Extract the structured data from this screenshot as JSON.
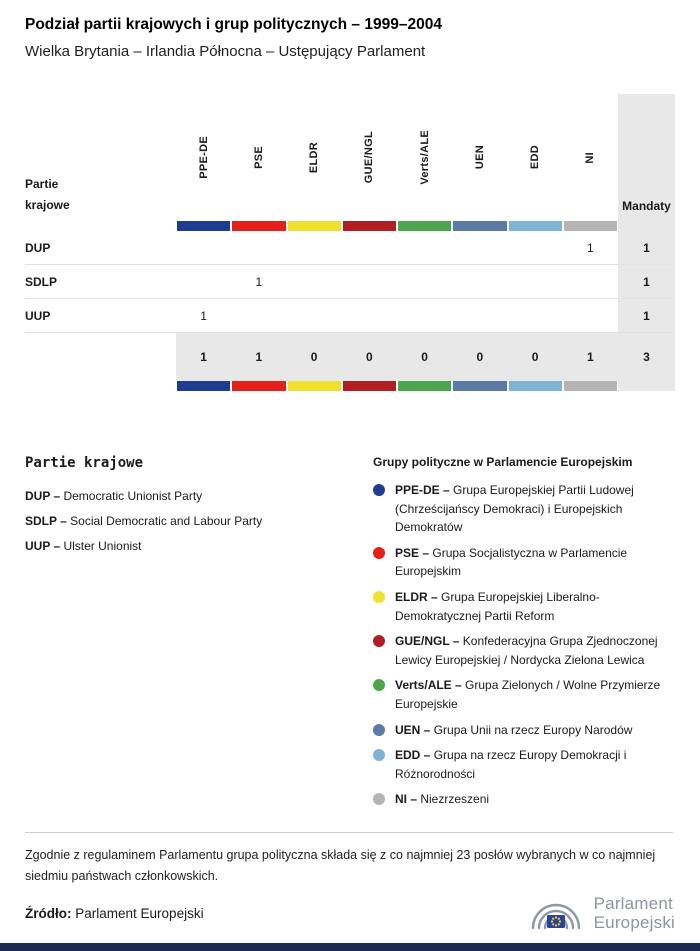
{
  "sep": "–",
  "header": {
    "title": "Podział partii krajowych i grup politycznych – 1999–2004",
    "subtitle": "Wielka Brytania – Irlandia Północna – Ustępujący Parlament"
  },
  "table": {
    "first_col_header": [
      "Partie",
      "krajowe"
    ],
    "mandaty_header": "Mandaty",
    "groups": [
      {
        "code": "PPE-DE",
        "color": "#1e3d8f"
      },
      {
        "code": "PSE",
        "color": "#e32119"
      },
      {
        "code": "ELDR",
        "color": "#f0e130"
      },
      {
        "code": "GUE/NGL",
        "color": "#b11f24"
      },
      {
        "code": "Verts/ALE",
        "color": "#4ba64f"
      },
      {
        "code": "UEN",
        "color": "#5c7aa6"
      },
      {
        "code": "EDD",
        "color": "#7fb2d5"
      },
      {
        "code": "NI",
        "color": "#b4b4b4"
      }
    ],
    "rows": [
      {
        "party": "DUP",
        "values": [
          "",
          "",
          "",
          "",
          "",
          "",
          "",
          "1"
        ],
        "mandaty": "1"
      },
      {
        "party": "SDLP",
        "values": [
          "",
          "1",
          "",
          "",
          "",
          "",
          "",
          ""
        ],
        "mandaty": "1"
      },
      {
        "party": "UUP",
        "values": [
          "1",
          "",
          "",
          "",
          "",
          "",
          "",
          ""
        ],
        "mandaty": "1"
      }
    ],
    "totals": {
      "values": [
        "1",
        "1",
        "0",
        "0",
        "0",
        "0",
        "0",
        "1"
      ],
      "mandaty": "3"
    }
  },
  "party_legend": {
    "heading": "Partie krajowe",
    "items": [
      {
        "abbr": "DUP",
        "name": "Democratic Unionist Party"
      },
      {
        "abbr": "SDLP",
        "name": "Social Democratic and Labour Party"
      },
      {
        "abbr": "UUP",
        "name": "Ulster Unionist"
      }
    ]
  },
  "group_legend": {
    "heading": "Grupy polityczne w Parlamencie Europejskim",
    "items": [
      {
        "code": "PPE-DE",
        "color": "#1e3d8f",
        "desc": "Grupa Europejskiej Partii Ludowej (Chrześcijańscy Demokraci) i Europejskich Demokratów"
      },
      {
        "code": "PSE",
        "color": "#e32119",
        "desc": "Grupa Socjalistyczna w Parlamencie Europejskim"
      },
      {
        "code": "ELDR",
        "color": "#f0e130",
        "desc": "Grupa Europejskiej Liberalno-Demokratycznej Partii Reform"
      },
      {
        "code": "GUE/NGL",
        "color": "#b11f24",
        "desc": "Konfederacyjna Grupa Zjednoczonej Lewicy Europejskiej / Nordycka Zielona Lewica"
      },
      {
        "code": "Verts/ALE",
        "color": "#4ba64f",
        "desc": "Grupa Zielonych / Wolne Przymierze Europejskie"
      },
      {
        "code": "UEN",
        "color": "#5c7aa6",
        "desc": "Grupa Unii na rzecz Europy Narodów"
      },
      {
        "code": "EDD",
        "color": "#7fb2d5",
        "desc": "Grupa na rzecz Europy Demokracji i Różnorodności"
      },
      {
        "code": "NI",
        "color": "#b4b4b4",
        "desc": "Niezrzeszeni"
      }
    ]
  },
  "footnote": "Zgodnie z regulaminem Parlamentu grupa polityczna składa się z co najmniej 23 posłów wybranych w co najmniej siedmiu państwach członkowskich.",
  "source": {
    "label": "Źródło:",
    "value": "Parlament Europejski"
  },
  "logo": {
    "line1": "Parlament",
    "line2": "Europejski"
  }
}
